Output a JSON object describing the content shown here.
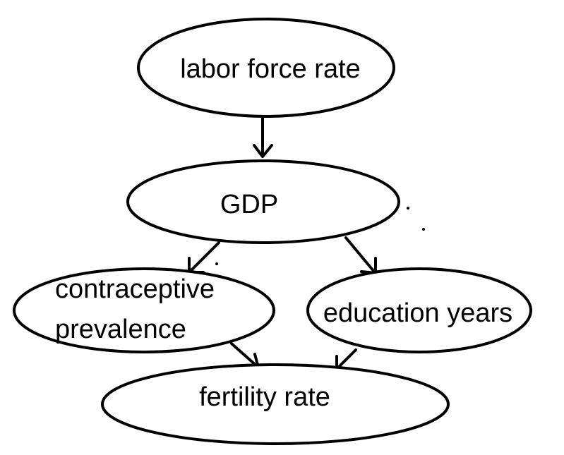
{
  "diagram": {
    "nodes": [
      {
        "id": "labor",
        "label": "labor force rate"
      },
      {
        "id": "gdp",
        "label": "GDP"
      },
      {
        "id": "contraceptive",
        "label": "contraceptive",
        "label2": "prevalence"
      },
      {
        "id": "education",
        "label": "education years"
      },
      {
        "id": "fertility",
        "label": "fertility rate"
      }
    ],
    "edges": [
      {
        "from": "labor",
        "to": "gdp"
      },
      {
        "from": "gdp",
        "to": "contraceptive"
      },
      {
        "from": "gdp",
        "to": "education"
      },
      {
        "from": "contraceptive",
        "to": "fertility"
      },
      {
        "from": "education",
        "to": "fertility"
      }
    ],
    "colors": {
      "stroke": "#000000",
      "fill": "#ffffff",
      "text": "#000000"
    }
  }
}
